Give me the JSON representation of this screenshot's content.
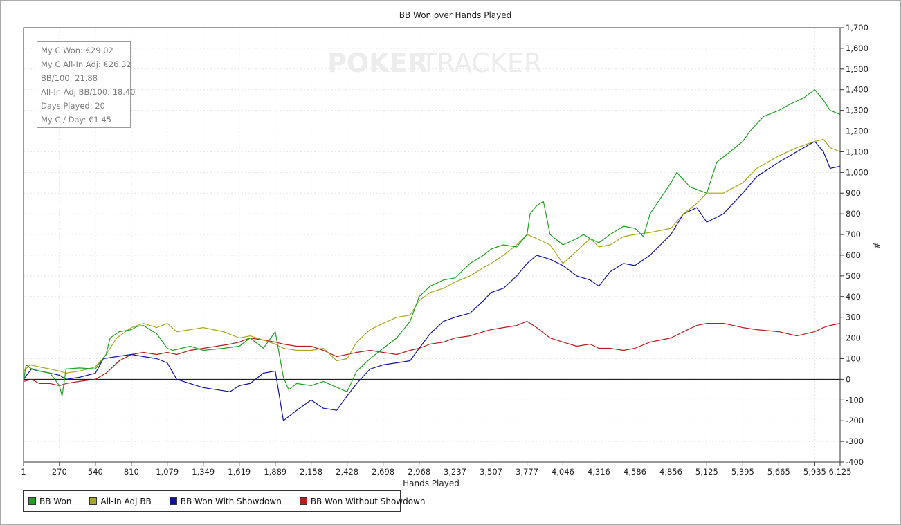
{
  "chart_data": {
    "type": "line",
    "title": "BB Won over Hands Played",
    "xlabel": "Hands Played",
    "ylabel": "#",
    "xlim": [
      1,
      6125
    ],
    "ylim": [
      -400,
      1700
    ],
    "x_ticks": [
      "1",
      "270",
      "540",
      "810",
      "1,079",
      "1,349",
      "1,619",
      "1,889",
      "2,158",
      "2,428",
      "2,698",
      "2,968",
      "3,237",
      "3,507",
      "3,777",
      "4,046",
      "4,316",
      "4,586",
      "4,856",
      "5,125",
      "5,395",
      "5,665",
      "5,935",
      "6,125"
    ],
    "x_tick_values": [
      1,
      270,
      540,
      810,
      1079,
      1349,
      1619,
      1889,
      2158,
      2428,
      2698,
      2968,
      3237,
      3507,
      3777,
      4046,
      4316,
      4586,
      4856,
      5125,
      5395,
      5665,
      5935,
      6125
    ],
    "y_ticks": [
      "-400",
      "-300",
      "-200",
      "-100",
      "0",
      "100",
      "200",
      "300",
      "400",
      "500",
      "600",
      "700",
      "800",
      "900",
      "1,000",
      "1,100",
      "1,200",
      "1,300",
      "1,400",
      "1,500",
      "1,600",
      "1,700"
    ],
    "y_tick_values": [
      -400,
      -300,
      -200,
      -100,
      0,
      100,
      200,
      300,
      400,
      500,
      600,
      700,
      800,
      900,
      1000,
      1100,
      1200,
      1300,
      1400,
      1500,
      1600,
      1700
    ],
    "grid": true,
    "legend_position": "bottom-left",
    "series": [
      {
        "name": "BB Won",
        "color": "#22a022",
        "x": [
          1,
          20,
          50,
          120,
          200,
          270,
          290,
          320,
          420,
          540,
          620,
          650,
          720,
          810,
          850,
          900,
          1000,
          1079,
          1120,
          1250,
          1349,
          1500,
          1619,
          1700,
          1800,
          1889,
          1950,
          1990,
          2050,
          2158,
          2250,
          2428,
          2500,
          2600,
          2698,
          2800,
          2900,
          2968,
          3050,
          3150,
          3237,
          3350,
          3450,
          3507,
          3600,
          3700,
          3777,
          3800,
          3850,
          3900,
          3950,
          4046,
          4150,
          4200,
          4250,
          4316,
          4400,
          4500,
          4586,
          4650,
          4700,
          4856,
          4900,
          5000,
          5125,
          5200,
          5300,
          5395,
          5450,
          5550,
          5665,
          5750,
          5850,
          5935,
          6000,
          6050,
          6125
        ],
        "values": [
          -10,
          70,
          55,
          40,
          30,
          -30,
          -80,
          50,
          55,
          50,
          120,
          200,
          230,
          240,
          255,
          260,
          220,
          150,
          140,
          160,
          140,
          150,
          160,
          200,
          150,
          230,
          10,
          -50,
          -20,
          -30,
          -10,
          -60,
          40,
          100,
          150,
          200,
          280,
          400,
          450,
          480,
          490,
          560,
          600,
          630,
          650,
          640,
          700,
          800,
          840,
          860,
          700,
          650,
          680,
          700,
          680,
          660,
          700,
          740,
          730,
          690,
          800,
          950,
          1000,
          930,
          900,
          1050,
          1100,
          1150,
          1200,
          1270,
          1300,
          1330,
          1360,
          1400,
          1350,
          1300,
          1280
        ]
      },
      {
        "name": "All-In Adj BB",
        "color": "#a8a820",
        "x": [
          1,
          50,
          120,
          200,
          270,
          320,
          420,
          540,
          620,
          700,
          810,
          900,
          1000,
          1079,
          1150,
          1250,
          1349,
          1500,
          1619,
          1700,
          1800,
          1889,
          1950,
          2050,
          2158,
          2250,
          2350,
          2428,
          2500,
          2600,
          2698,
          2800,
          2900,
          2968,
          3050,
          3150,
          3237,
          3350,
          3450,
          3507,
          3600,
          3700,
          3777,
          3850,
          3950,
          4046,
          4150,
          4250,
          4316,
          4400,
          4500,
          4586,
          4700,
          4856,
          4950,
          5050,
          5125,
          5250,
          5395,
          5500,
          5665,
          5800,
          5935,
          6000,
          6050,
          6125
        ],
        "values": [
          40,
          70,
          60,
          50,
          40,
          30,
          40,
          60,
          120,
          200,
          250,
          270,
          250,
          270,
          230,
          240,
          250,
          230,
          200,
          210,
          190,
          170,
          150,
          140,
          140,
          150,
          90,
          100,
          180,
          240,
          270,
          300,
          310,
          380,
          420,
          440,
          470,
          500,
          540,
          560,
          600,
          650,
          700,
          680,
          650,
          560,
          620,
          680,
          640,
          650,
          690,
          700,
          710,
          730,
          800,
          850,
          900,
          900,
          950,
          1020,
          1080,
          1120,
          1150,
          1160,
          1120,
          1100
        ]
      },
      {
        "name": "BB Won With Showdown",
        "color": "#1010a0",
        "x": [
          1,
          60,
          120,
          200,
          270,
          320,
          420,
          540,
          600,
          700,
          810,
          900,
          1000,
          1079,
          1150,
          1250,
          1349,
          1450,
          1550,
          1619,
          1700,
          1800,
          1889,
          1950,
          2050,
          2158,
          2250,
          2350,
          2428,
          2500,
          2600,
          2698,
          2800,
          2900,
          2968,
          3050,
          3150,
          3237,
          3350,
          3450,
          3507,
          3600,
          3700,
          3777,
          3850,
          3950,
          4046,
          4150,
          4250,
          4316,
          4400,
          4500,
          4586,
          4700,
          4856,
          4950,
          5050,
          5125,
          5250,
          5395,
          5500,
          5665,
          5800,
          5935,
          6000,
          6050,
          6125
        ],
        "values": [
          0,
          50,
          40,
          30,
          20,
          0,
          10,
          30,
          100,
          110,
          120,
          110,
          100,
          80,
          0,
          -20,
          -40,
          -50,
          -60,
          -30,
          -20,
          30,
          40,
          -200,
          -150,
          -100,
          -140,
          -150,
          -80,
          -20,
          50,
          70,
          80,
          90,
          150,
          220,
          280,
          300,
          320,
          380,
          420,
          440,
          500,
          560,
          600,
          580,
          550,
          500,
          480,
          450,
          520,
          560,
          550,
          600,
          700,
          800,
          830,
          760,
          800,
          900,
          980,
          1050,
          1100,
          1150,
          1100,
          1020,
          1030
        ]
      },
      {
        "name": "BB Won Without Showdown",
        "color": "#b81c1c",
        "x": [
          1,
          60,
          120,
          200,
          270,
          320,
          420,
          540,
          620,
          720,
          810,
          900,
          1000,
          1079,
          1150,
          1250,
          1349,
          1450,
          1550,
          1619,
          1700,
          1800,
          1889,
          1950,
          2050,
          2158,
          2250,
          2350,
          2428,
          2500,
          2600,
          2698,
          2800,
          2900,
          2968,
          3050,
          3150,
          3237,
          3350,
          3450,
          3507,
          3600,
          3700,
          3777,
          3850,
          3950,
          4046,
          4150,
          4250,
          4316,
          4400,
          4500,
          4586,
          4700,
          4856,
          4950,
          5050,
          5125,
          5250,
          5395,
          5500,
          5665,
          5800,
          5935,
          6000,
          6050,
          6125
        ],
        "values": [
          -10,
          0,
          -20,
          -20,
          -30,
          -20,
          -10,
          0,
          30,
          90,
          120,
          130,
          120,
          130,
          120,
          140,
          150,
          160,
          170,
          180,
          200,
          190,
          180,
          170,
          160,
          160,
          140,
          110,
          120,
          130,
          140,
          130,
          120,
          140,
          150,
          170,
          180,
          200,
          210,
          230,
          240,
          250,
          260,
          280,
          250,
          200,
          180,
          160,
          170,
          150,
          150,
          140,
          150,
          180,
          200,
          230,
          260,
          270,
          270,
          250,
          240,
          230,
          210,
          230,
          250,
          260,
          270
        ]
      }
    ]
  },
  "stats": {
    "won": "My C Won: €29.02",
    "allin_adj": "My C All-In Adj: €26.32",
    "bb100": "BB/100: 21.88",
    "allin_bb100": "All-In Adj BB/100: 18.40",
    "days": "Days Played: 20",
    "per_day": "My C / Day: €1.45"
  },
  "watermark": {
    "left": "POKER",
    "right": "TRACKER"
  },
  "legend": [
    "BB Won",
    "All-In Adj BB",
    "BB Won With Showdown",
    "BB Won Without Showdown"
  ]
}
